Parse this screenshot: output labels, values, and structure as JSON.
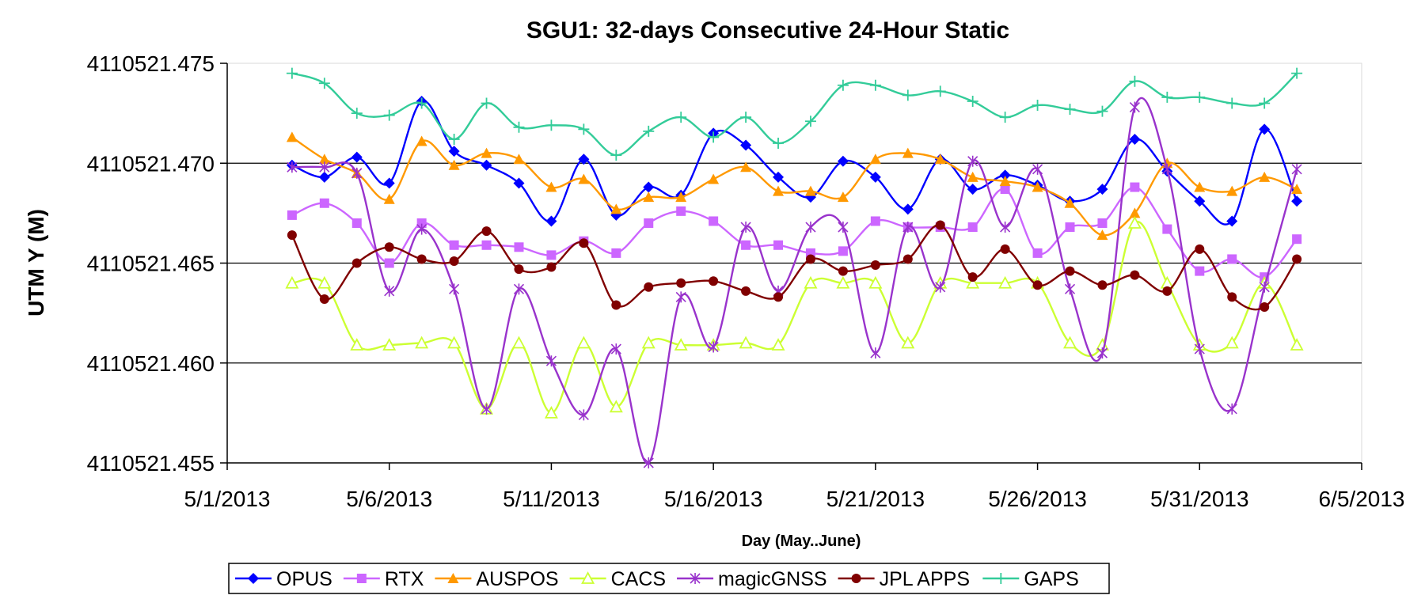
{
  "chart_data": {
    "type": "line",
    "title": "SGU1: 32-days Consecutive 24-Hour Static",
    "xlabel": "Day (May..June)",
    "ylabel": "UTM Y (M)",
    "xlim": [
      "2013-05-01",
      "2013-06-05"
    ],
    "ylim": [
      4110521.455,
      4110521.475
    ],
    "x_ticks": [
      "5/1/2013",
      "5/6/2013",
      "5/11/2013",
      "5/16/2013",
      "5/21/2013",
      "5/26/2013",
      "5/31/2013",
      "6/5/2013"
    ],
    "y_ticks": [
      "4110521.475",
      "4110521.470",
      "4110521.465",
      "4110521.460",
      "4110521.455"
    ],
    "grid": "horizontal major gridlines",
    "legend_position": "bottom",
    "x": [
      "2013-05-03",
      "2013-05-04",
      "2013-05-05",
      "2013-05-06",
      "2013-05-07",
      "2013-05-08",
      "2013-05-09",
      "2013-05-10",
      "2013-05-11",
      "2013-05-12",
      "2013-05-13",
      "2013-05-14",
      "2013-05-15",
      "2013-05-16",
      "2013-05-17",
      "2013-05-18",
      "2013-05-19",
      "2013-05-20",
      "2013-05-21",
      "2013-05-22",
      "2013-05-23",
      "2013-05-24",
      "2013-05-25",
      "2013-05-26",
      "2013-05-27",
      "2013-05-28",
      "2013-05-29",
      "2013-05-30",
      "2013-05-31",
      "2013-06-01",
      "2013-06-02",
      "2013-06-03"
    ],
    "series": [
      {
        "name": "OPUS",
        "color": "#0000ff",
        "marker": "diamond",
        "values": [
          4110521.4699,
          4110521.4693,
          4110521.4703,
          4110521.469,
          4110521.4731,
          4110521.4706,
          4110521.4699,
          4110521.469,
          4110521.4671,
          4110521.4702,
          4110521.4674,
          4110521.4688,
          4110521.4684,
          4110521.4715,
          4110521.4709,
          4110521.4693,
          4110521.4683,
          4110521.4701,
          4110521.4693,
          4110521.4677,
          4110521.4702,
          4110521.4687,
          4110521.4694,
          4110521.4689,
          4110521.4681,
          4110521.4687,
          4110521.4712,
          4110521.4696,
          4110521.4681,
          4110521.4671,
          4110521.4717,
          4110521.4681
        ]
      },
      {
        "name": "RTX",
        "color": "#cc66ff",
        "marker": "square",
        "values": [
          4110521.4674,
          4110521.468,
          4110521.467,
          4110521.465,
          4110521.467,
          4110521.4659,
          4110521.4659,
          4110521.4658,
          4110521.4654,
          4110521.4661,
          4110521.4655,
          4110521.467,
          4110521.4676,
          4110521.4671,
          4110521.4659,
          4110521.4659,
          4110521.4655,
          4110521.4656,
          4110521.4671,
          4110521.4668,
          4110521.4668,
          4110521.4668,
          4110521.4687,
          4110521.4655,
          4110521.4668,
          4110521.467,
          4110521.4688,
          4110521.4667,
          4110521.4646,
          4110521.4652,
          4110521.4643,
          4110521.4662
        ]
      },
      {
        "name": "AUSPOS",
        "color": "#ff9900",
        "marker": "triangle",
        "values": [
          4110521.4713,
          4110521.4702,
          4110521.4695,
          4110521.4682,
          4110521.4711,
          4110521.4699,
          4110521.4705,
          4110521.4702,
          4110521.4688,
          4110521.4692,
          4110521.4677,
          4110521.4683,
          4110521.4683,
          4110521.4692,
          4110521.4698,
          4110521.4686,
          4110521.4686,
          4110521.4683,
          4110521.4702,
          4110521.4705,
          4110521.4702,
          4110521.4693,
          4110521.4691,
          4110521.4688,
          4110521.468,
          4110521.4664,
          4110521.4675,
          4110521.47,
          4110521.4688,
          4110521.4686,
          4110521.4693,
          4110521.4687
        ]
      },
      {
        "name": "CACS",
        "color": "#ccff33",
        "marker": "triangle-open",
        "values": [
          4110521.464,
          4110521.464,
          4110521.4609,
          4110521.4609,
          4110521.461,
          4110521.461,
          4110521.4577,
          4110521.461,
          4110521.4575,
          4110521.461,
          4110521.4578,
          4110521.461,
          4110521.4609,
          4110521.4609,
          4110521.461,
          4110521.4609,
          4110521.464,
          4110521.464,
          4110521.464,
          4110521.461,
          4110521.464,
          4110521.464,
          4110521.464,
          4110521.464,
          4110521.461,
          4110521.4609,
          4110521.467,
          4110521.464,
          4110521.4609,
          4110521.461,
          4110521.464,
          4110521.4609
        ]
      },
      {
        "name": "magicGNSS",
        "color": "#9933cc",
        "marker": "star",
        "values": [
          4110521.4698,
          4110521.4698,
          4110521.4695,
          4110521.4636,
          4110521.4667,
          4110521.4637,
          4110521.4577,
          4110521.4637,
          4110521.4601,
          4110521.4574,
          4110521.4607,
          4110521.455,
          4110521.4633,
          4110521.4608,
          4110521.4668,
          4110521.4636,
          4110521.4668,
          4110521.4668,
          4110521.4605,
          4110521.4668,
          4110521.4638,
          4110521.4701,
          4110521.4668,
          4110521.4697,
          4110521.4637,
          4110521.4605,
          4110521.4728,
          4110521.4697,
          4110521.4607,
          4110521.4577,
          4110521.4638,
          4110521.4697
        ]
      },
      {
        "name": "JPL APPS",
        "color": "#800000",
        "marker": "circle",
        "values": [
          4110521.4664,
          4110521.4632,
          4110521.465,
          4110521.4658,
          4110521.4652,
          4110521.4651,
          4110521.4666,
          4110521.4647,
          4110521.4648,
          4110521.466,
          4110521.4629,
          4110521.4638,
          4110521.464,
          4110521.4641,
          4110521.4636,
          4110521.4633,
          4110521.4652,
          4110521.4646,
          4110521.4649,
          4110521.4652,
          4110521.4669,
          4110521.4643,
          4110521.4657,
          4110521.4639,
          4110521.4646,
          4110521.4639,
          4110521.4644,
          4110521.4636,
          4110521.4657,
          4110521.4633,
          4110521.4628,
          4110521.4652
        ]
      },
      {
        "name": "GAPS",
        "color": "#33cc99",
        "marker": "plus",
        "values": [
          4110521.4745,
          4110521.474,
          4110521.4725,
          4110521.4724,
          4110521.473,
          4110521.4712,
          4110521.473,
          4110521.4718,
          4110521.4719,
          4110521.4717,
          4110521.4704,
          4110521.4716,
          4110521.4723,
          4110521.4713,
          4110521.4723,
          4110521.471,
          4110521.4721,
          4110521.4739,
          4110521.4739,
          4110521.4734,
          4110521.4736,
          4110521.4731,
          4110521.4723,
          4110521.4729,
          4110521.4727,
          4110521.4726,
          4110521.4741,
          4110521.4733,
          4110521.4733,
          4110521.473,
          4110521.473,
          4110521.4745
        ]
      }
    ]
  }
}
